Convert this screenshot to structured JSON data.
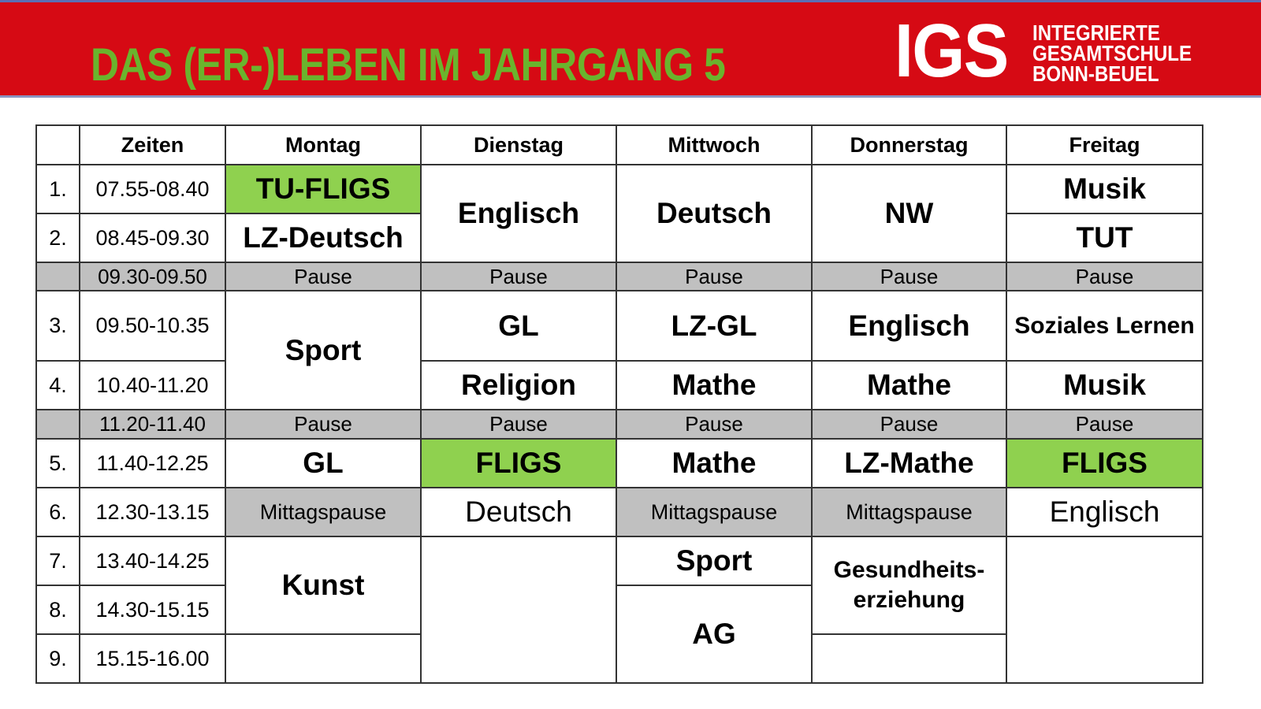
{
  "header": {
    "title": "DAS (ER-)LEBEN IM JAHRGANG 5",
    "logo_mark": "IGS",
    "logo_lines": [
      "INTEGRIERTE",
      "GESAMTSCHULE",
      "BONN-BEUEL"
    ],
    "colors": {
      "banner": "#d60a14",
      "title": "#6ab42d",
      "highlight": "#8fd14f",
      "pause": "#c0c0c0"
    }
  },
  "timetable": {
    "columns": [
      "",
      "Zeiten",
      "Montag",
      "Dienstag",
      "Mittwoch",
      "Donnerstag",
      "Freitag"
    ],
    "rows": [
      {
        "num": "1.",
        "time": "07.55-08.40",
        "cells": [
          {
            "text": "TU-FLIGS",
            "style": "subj green"
          },
          {
            "text": "Englisch",
            "style": "subj",
            "rowspan": 2
          },
          {
            "text": "Deutsch",
            "style": "subj",
            "rowspan": 2
          },
          {
            "text": "NW",
            "style": "subj",
            "rowspan": 2
          },
          {
            "text": "Musik",
            "style": "subj"
          }
        ]
      },
      {
        "num": "2.",
        "time": "08.45-09.30",
        "cells": [
          {
            "text": "LZ-Deutsch",
            "style": "subj"
          },
          {
            "text": "TUT",
            "style": "subj"
          }
        ]
      },
      {
        "num": "",
        "time": "09.30-09.50",
        "pause": true,
        "cells": [
          {
            "text": "Pause",
            "style": "pause"
          },
          {
            "text": "Pause",
            "style": "pause"
          },
          {
            "text": "Pause",
            "style": "pause"
          },
          {
            "text": "Pause",
            "style": "pause"
          },
          {
            "text": "Pause",
            "style": "pause"
          }
        ]
      },
      {
        "num": "3.",
        "time": "09.50-10.35",
        "cells": [
          {
            "text": "Sport",
            "style": "subj",
            "rowspan": 2
          },
          {
            "text": "GL",
            "style": "subj"
          },
          {
            "text": "LZ-GL",
            "style": "subj"
          },
          {
            "text": "Englisch",
            "style": "subj"
          },
          {
            "text": "Soziales Lernen",
            "style": "subj small"
          }
        ]
      },
      {
        "num": "4.",
        "time": "10.40-11.20",
        "cells": [
          {
            "text": "Religion",
            "style": "subj"
          },
          {
            "text": "Mathe",
            "style": "subj"
          },
          {
            "text": "Mathe",
            "style": "subj"
          },
          {
            "text": "Musik",
            "style": "subj"
          }
        ]
      },
      {
        "num": "",
        "time": "11.20-11.40",
        "pause": true,
        "cells": [
          {
            "text": "Pause",
            "style": "pause"
          },
          {
            "text": "Pause",
            "style": "pause"
          },
          {
            "text": "Pause",
            "style": "pause"
          },
          {
            "text": "Pause",
            "style": "pause"
          },
          {
            "text": "Pause",
            "style": "pause"
          }
        ]
      },
      {
        "num": "5.",
        "time": "11.40-12.25",
        "cells": [
          {
            "text": "GL",
            "style": "subj"
          },
          {
            "text": "FLIGS",
            "style": "subj green"
          },
          {
            "text": "Mathe",
            "style": "subj"
          },
          {
            "text": "LZ-Mathe",
            "style": "subj"
          },
          {
            "text": "FLIGS",
            "style": "subj green"
          }
        ]
      },
      {
        "num": "6.",
        "time": "12.30-13.15",
        "cells": [
          {
            "text": "Mittagspause",
            "style": "gray"
          },
          {
            "text": "Deutsch",
            "style": "plain"
          },
          {
            "text": "Mittagspause",
            "style": "gray"
          },
          {
            "text": "Mittagspause",
            "style": "gray"
          },
          {
            "text": "Englisch",
            "style": "plain"
          }
        ]
      },
      {
        "num": "7.",
        "time": "13.40-14.25",
        "cells": [
          {
            "text": "Kunst",
            "style": "subj",
            "rowspan": 2
          },
          {
            "text": "",
            "style": "subj",
            "rowspan": 3
          },
          {
            "text": "Sport",
            "style": "subj"
          },
          {
            "text": "Gesundheits- erziehung",
            "style": "subj small",
            "rowspan": 2
          },
          {
            "text": "",
            "style": "subj",
            "rowspan": 3
          }
        ]
      },
      {
        "num": "8.",
        "time": "14.30-15.15",
        "cells": [
          {
            "text": "AG",
            "style": "subj",
            "rowspan": 2
          }
        ]
      },
      {
        "num": "9.",
        "time": "15.15-16.00",
        "cells": [
          {
            "text": "",
            "style": "subj"
          },
          {
            "text": "",
            "style": "subj"
          }
        ]
      }
    ]
  }
}
